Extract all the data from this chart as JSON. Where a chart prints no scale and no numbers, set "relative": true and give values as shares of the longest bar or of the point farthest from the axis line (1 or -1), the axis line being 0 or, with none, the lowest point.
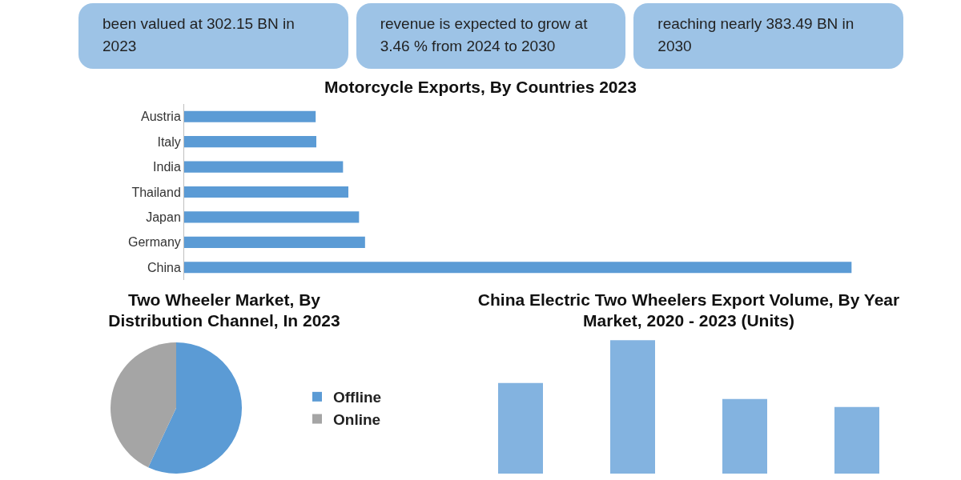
{
  "chart_data": [
    {
      "type": "other",
      "annotations": [
        "been valued at 302.15 BN in 2023",
        "revenue is expected to grow at 3.46 % from 2024 to 2030",
        "reaching nearly 383.49 BN in 2030"
      ]
    },
    {
      "type": "bar",
      "orientation": "horizontal",
      "relative": true,
      "title": "Motorcycle Exports, By Countries 2023",
      "categories": [
        "Austria",
        "Italy",
        "India",
        "Thailand",
        "Japan",
        "Germany",
        "China"
      ],
      "values": [
        0.197,
        0.198,
        0.238,
        0.246,
        0.262,
        0.271,
        1
      ],
      "color": "#5b9bd5"
    },
    {
      "type": "pie",
      "title": "Two Wheeler Market, By Distribution Channel, In 2023",
      "categories": [
        "Offline",
        "Online"
      ],
      "values": [
        57,
        43
      ],
      "colors": [
        "#5b9bd5",
        "#a5a5a5"
      ],
      "legend": "right"
    },
    {
      "type": "bar",
      "relative": true,
      "title": "China Electric Two Wheelers Export Volume, By Year Market, 2020 - 2023 (Units)",
      "categories": [
        null,
        null,
        null,
        null
      ],
      "values": [
        0.68,
        1,
        0.56,
        0.5
      ],
      "color": "#83b3e0"
    }
  ]
}
